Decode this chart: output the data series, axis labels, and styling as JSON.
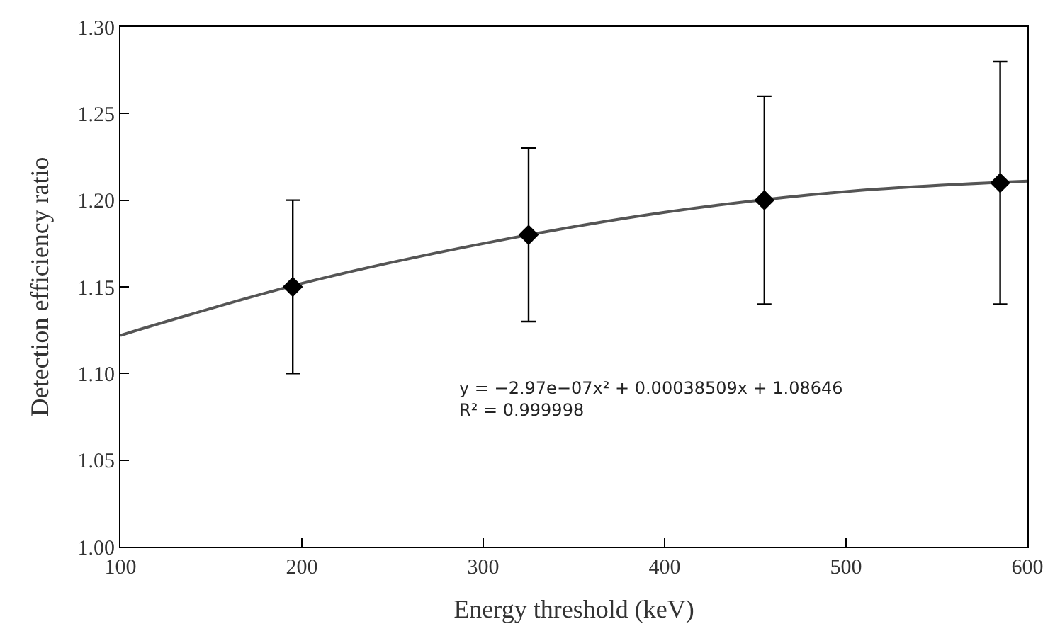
{
  "chart_data": {
    "type": "scatter",
    "xlabel": "Energy threshold (keV)",
    "ylabel": "Detection efficiency ratio",
    "xlim": [
      100,
      600
    ],
    "xticks": [
      100,
      200,
      300,
      400,
      500,
      600
    ],
    "ylim": [
      1.0,
      1.3
    ],
    "yticks": [
      {
        "value": 1.0,
        "label": "1.00"
      },
      {
        "value": 1.05,
        "label": "1.05"
      },
      {
        "value": 1.1,
        "label": "1.10"
      },
      {
        "value": 1.15,
        "label": "1.15"
      },
      {
        "value": 1.2,
        "label": "1.20"
      },
      {
        "value": 1.25,
        "label": "1.25"
      },
      {
        "value": 1.3,
        "label": "1.30"
      }
    ],
    "series": [
      {
        "type": "line",
        "marker": "none",
        "color": "#555555",
        "x": [
          100,
          200,
          300,
          400,
          500,
          600
        ],
        "values": [
          1.122,
          1.152,
          1.175,
          1.193,
          1.205,
          1.211
        ]
      },
      {
        "marker": "diamond",
        "color": "#000000",
        "x": [
          195,
          325,
          455,
          585
        ],
        "values": [
          1.15,
          1.18,
          1.2,
          1.21
        ],
        "errors": [
          [
            1.1,
            1.2
          ],
          [
            1.13,
            1.23
          ],
          [
            1.14,
            1.26
          ],
          [
            1.14,
            1.28
          ]
        ]
      }
    ],
    "annotations": [
      "y = −2.97e−07x² + 0.00038509x + 1.08646\nR² = 0.999998"
    ]
  }
}
